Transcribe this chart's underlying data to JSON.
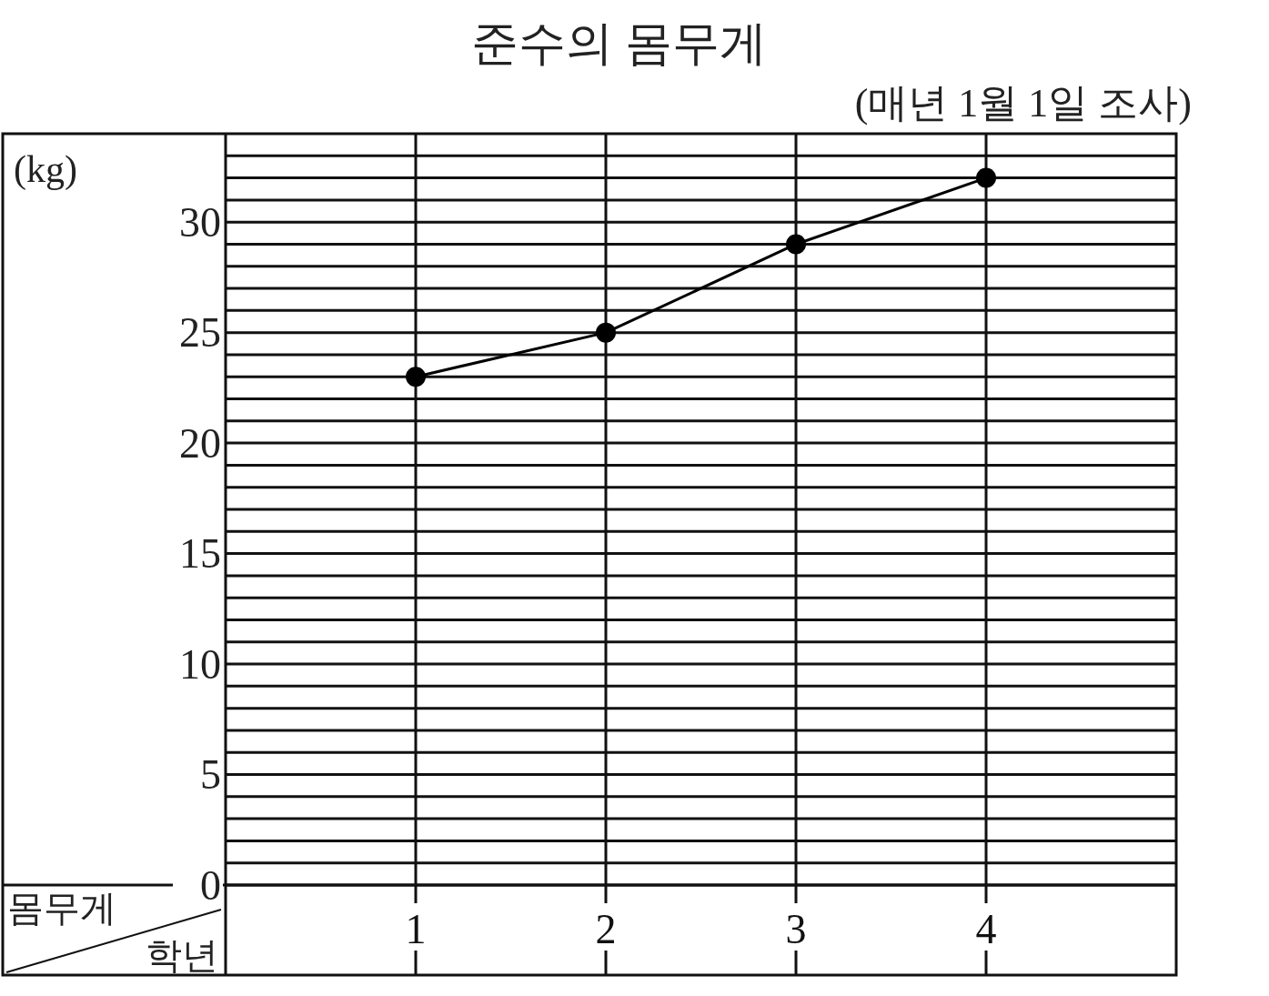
{
  "chart_data": {
    "type": "line",
    "title": "준수의 몸무게",
    "subtitle": "(매년 1월 1일 조사)",
    "ylabel": "(kg)",
    "xlabel": "학년",
    "annotations": [
      "몸무게"
    ],
    "categories": [
      "1",
      "2",
      "3",
      "4"
    ],
    "series": [
      {
        "color": "#000000",
        "values": [
          23,
          25,
          29,
          32
        ]
      }
    ],
    "ylim": [
      0,
      34
    ],
    "yticks": [
      0,
      {
        "value": 1,
        "label": null
      },
      {
        "value": 2,
        "label": null
      },
      {
        "value": 3,
        "label": null
      },
      {
        "value": 4,
        "label": null
      },
      5,
      {
        "value": 6,
        "label": null
      },
      {
        "value": 7,
        "label": null
      },
      {
        "value": 8,
        "label": null
      },
      {
        "value": 9,
        "label": null
      },
      10,
      {
        "value": 11,
        "label": null
      },
      {
        "value": 12,
        "label": null
      },
      {
        "value": 13,
        "label": null
      },
      {
        "value": 14,
        "label": null
      },
      15,
      {
        "value": 16,
        "label": null
      },
      {
        "value": 17,
        "label": null
      },
      {
        "value": 18,
        "label": null
      },
      {
        "value": 19,
        "label": null
      },
      20,
      {
        "value": 21,
        "label": null
      },
      {
        "value": 22,
        "label": null
      },
      {
        "value": 23,
        "label": null
      },
      {
        "value": 24,
        "label": null
      },
      25,
      {
        "value": 26,
        "label": null
      },
      {
        "value": 27,
        "label": null
      },
      {
        "value": 28,
        "label": null
      },
      {
        "value": 29,
        "label": null
      },
      30,
      {
        "value": 31,
        "label": null
      },
      {
        "value": 32,
        "label": null
      },
      {
        "value": 33,
        "label": null
      }
    ],
    "grid": true,
    "marker": "circle",
    "line_style": "solid"
  }
}
